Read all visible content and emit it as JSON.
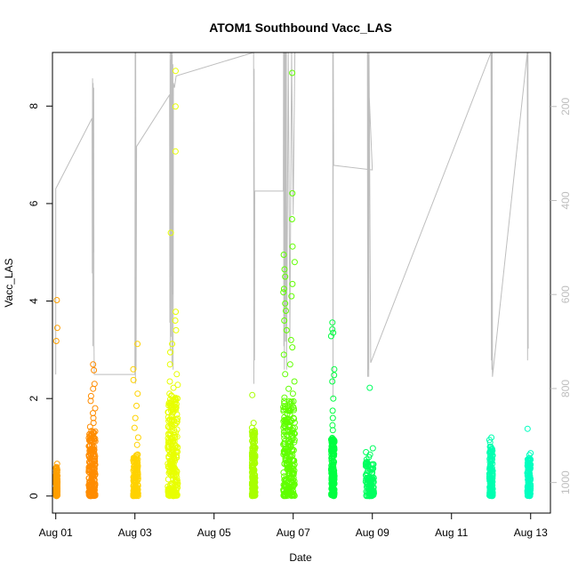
{
  "chart_data": {
    "type": "scatter",
    "title": "ATOM1 Southbound Vacc_LAS",
    "xlabel": "Date",
    "ylabel": "Vacc_LAS",
    "xlim": [
      "2016-07-31T22:00",
      "2016-08-13T12:00"
    ],
    "ylim": [
      -0.35,
      9.1
    ],
    "x_ticks": [
      {
        "label": "Aug 01",
        "date": "2016-08-01"
      },
      {
        "label": "Aug 03",
        "date": "2016-08-03"
      },
      {
        "label": "Aug 05",
        "date": "2016-08-05"
      },
      {
        "label": "Aug 07",
        "date": "2016-08-07"
      },
      {
        "label": "Aug 09",
        "date": "2016-08-09"
      },
      {
        "label": "Aug 11",
        "date": "2016-08-11"
      },
      {
        "label": "Aug 13",
        "date": "2016-08-13"
      }
    ],
    "y_ticks": [
      0,
      2,
      4,
      6,
      8
    ],
    "secondary_axis": {
      "color": "#bebebe",
      "ticks": [
        200,
        400,
        600,
        800,
        1000
      ],
      "range": [
        85,
        1065
      ],
      "reversed": true
    },
    "gray_line_series": [
      {
        "d": "2016-08-01T00:00",
        "v": 770
      },
      {
        "d": "2016-08-01T00:00",
        "v": 375
      },
      {
        "d": "2016-08-01T22:00",
        "v": 225
      },
      {
        "d": "2016-08-01T22:10",
        "v": 555
      },
      {
        "d": "2016-08-01T22:20",
        "v": 140
      },
      {
        "d": "2016-08-01T22:30",
        "v": 710
      },
      {
        "d": "2016-08-01T22:40",
        "v": 150
      },
      {
        "d": "2016-08-01T22:50",
        "v": 510
      },
      {
        "d": "2016-08-01T23:00",
        "v": 160
      },
      {
        "d": "2016-08-01T23:10",
        "v": 700
      },
      {
        "d": "2016-08-01T23:20",
        "v": 770
      },
      {
        "d": "2016-08-03T00:00",
        "v": 770
      },
      {
        "d": "2016-08-03T00:10",
        "v": 80
      },
      {
        "d": "2016-08-03T00:20",
        "v": 790
      },
      {
        "d": "2016-08-03T00:30",
        "v": 85
      },
      {
        "d": "2016-08-03T00:40",
        "v": 760
      },
      {
        "d": "2016-08-03T01:00",
        "v": 285
      },
      {
        "d": "2016-08-03T21:00",
        "v": 175
      },
      {
        "d": "2016-08-03T21:10",
        "v": 660
      },
      {
        "d": "2016-08-03T21:20",
        "v": 80
      },
      {
        "d": "2016-08-03T21:30",
        "v": 720
      },
      {
        "d": "2016-08-03T21:40",
        "v": 100
      },
      {
        "d": "2016-08-03T21:50",
        "v": 690
      },
      {
        "d": "2016-08-03T22:00",
        "v": 80
      },
      {
        "d": "2016-08-03T22:10",
        "v": 560
      },
      {
        "d": "2016-08-03T22:20",
        "v": 90
      },
      {
        "d": "2016-08-03T22:30",
        "v": 750
      },
      {
        "d": "2016-08-03T22:40",
        "v": 80
      },
      {
        "d": "2016-08-03T22:50",
        "v": 600
      },
      {
        "d": "2016-08-03T23:00",
        "v": 110
      },
      {
        "d": "2016-08-03T23:10",
        "v": 760
      },
      {
        "d": "2016-08-03T23:20",
        "v": 150
      },
      {
        "d": "2016-08-04T00:00",
        "v": 160
      },
      {
        "d": "2016-08-04T01:00",
        "v": 135
      },
      {
        "d": "2016-08-06T00:00",
        "v": 60
      },
      {
        "d": "2016-08-06T00:10",
        "v": 790
      },
      {
        "d": "2016-08-06T00:20",
        "v": 120
      },
      {
        "d": "2016-08-06T00:30",
        "v": 740
      },
      {
        "d": "2016-08-06T00:40",
        "v": 380
      },
      {
        "d": "2016-08-06T18:00",
        "v": 380
      },
      {
        "d": "2016-08-06T18:10",
        "v": 60
      },
      {
        "d": "2016-08-06T18:20",
        "v": 710
      },
      {
        "d": "2016-08-06T18:30",
        "v": 60
      },
      {
        "d": "2016-08-06T18:40",
        "v": 760
      },
      {
        "d": "2016-08-06T18:50",
        "v": 70
      },
      {
        "d": "2016-08-06T19:00",
        "v": 650
      },
      {
        "d": "2016-08-06T19:10",
        "v": 60
      },
      {
        "d": "2016-08-06T19:20",
        "v": 700
      },
      {
        "d": "2016-08-06T19:30",
        "v": 80
      },
      {
        "d": "2016-08-06T19:40",
        "v": 560
      },
      {
        "d": "2016-08-06T19:50",
        "v": 60
      },
      {
        "d": "2016-08-06T20:00",
        "v": 760
      },
      {
        "d": "2016-08-06T21:00",
        "v": 60
      },
      {
        "d": "2016-08-06T22:00",
        "v": 700
      },
      {
        "d": "2016-08-06T23:00",
        "v": 60
      },
      {
        "d": "2016-08-07T00:00",
        "v": 430
      },
      {
        "d": "2016-08-07T01:00",
        "v": 60
      },
      {
        "d": "2016-08-08T00:00",
        "v": 60
      },
      {
        "d": "2016-08-08T00:10",
        "v": 820
      },
      {
        "d": "2016-08-08T00:20",
        "v": 80
      },
      {
        "d": "2016-08-08T00:30",
        "v": 325
      },
      {
        "d": "2016-08-09T00:00",
        "v": 335
      },
      {
        "d": "2016-08-08T21:00",
        "v": 70
      },
      {
        "d": "2016-08-08T21:10",
        "v": 775
      },
      {
        "d": "2016-08-08T21:20",
        "v": 80
      },
      {
        "d": "2016-08-08T21:30",
        "v": 760
      },
      {
        "d": "2016-08-08T21:40",
        "v": 90
      },
      {
        "d": "2016-08-08T21:50",
        "v": 775
      },
      {
        "d": "2016-08-08T22:00",
        "v": 70
      },
      {
        "d": "2016-08-08T23:00",
        "v": 745
      },
      {
        "d": "2016-08-12T00:00",
        "v": 60
      },
      {
        "d": "2016-08-12T00:10",
        "v": 740
      },
      {
        "d": "2016-08-12T00:20",
        "v": 70
      },
      {
        "d": "2016-08-12T00:30",
        "v": 760
      },
      {
        "d": "2016-08-12T00:40",
        "v": 75
      },
      {
        "d": "2016-08-12T00:50",
        "v": 775
      },
      {
        "d": "2016-08-12T22:00",
        "v": 60
      },
      {
        "d": "2016-08-12T22:10",
        "v": 740
      },
      {
        "d": "2016-08-12T22:20",
        "v": 60
      },
      {
        "d": "2016-08-12T22:30",
        "v": 715
      }
    ],
    "clusters": [
      {
        "color": "#ff9f00",
        "time_start": "2016-08-01T00:00",
        "time_end": "2016-08-01T01:00",
        "core_min": 0.0,
        "core_max": 0.6,
        "outliers": [
          4.02,
          3.45,
          3.18,
          0.66,
          0.56,
          0.5
        ]
      },
      {
        "color": "#ff8c00",
        "time_start": "2016-08-01T20:00",
        "time_end": "2016-08-02T00:00",
        "core_min": 0.0,
        "core_max": 1.35,
        "outliers": [
          2.7,
          2.58,
          2.3,
          2.2,
          2.05,
          1.95,
          1.8,
          1.7,
          1.6,
          1.5,
          1.42
        ]
      },
      {
        "color": "#ffd200",
        "time_start": "2016-08-02T23:00",
        "time_end": "2016-08-03T02:00",
        "core_min": 0.0,
        "core_max": 0.9,
        "outliers": [
          3.12,
          2.6,
          2.38,
          2.1,
          1.85,
          1.6,
          1.4,
          1.2,
          1.05
        ]
      },
      {
        "color": "#e8ff00",
        "time_start": "2016-08-03T20:00",
        "time_end": "2016-08-04T02:00",
        "core_min": 0.0,
        "core_max": 2.1,
        "outliers": [
          8.72,
          7.99,
          7.07,
          5.4,
          3.78,
          3.6,
          3.4,
          3.12,
          2.95,
          2.7,
          2.5,
          2.35,
          2.28,
          2.22
        ]
      },
      {
        "color": "#a8ff00",
        "time_start": "2016-08-05T23:00",
        "time_end": "2016-08-06T01:00",
        "core_min": 0.0,
        "core_max": 1.35,
        "outliers": [
          2.07,
          1.5,
          1.4
        ]
      },
      {
        "color": "#60ff00",
        "time_start": "2016-08-06T18:00",
        "time_end": "2016-08-07T01:00",
        "core_min": 0.0,
        "core_max": 1.95,
        "outliers": [
          8.68,
          6.21,
          5.68,
          5.12,
          4.95,
          4.8,
          4.65,
          4.5,
          4.35,
          4.25,
          4.18,
          4.1,
          3.95,
          3.8,
          3.6,
          3.4,
          3.2,
          3.05,
          2.9,
          2.7,
          2.5,
          2.35,
          2.2,
          2.1,
          2.02
        ]
      },
      {
        "color": "#00ff40",
        "time_start": "2016-08-07T23:00",
        "time_end": "2016-08-08T01:00",
        "core_min": 0.0,
        "core_max": 1.2,
        "outliers": [
          3.56,
          3.42,
          3.35,
          3.28,
          2.6,
          2.48,
          2.35,
          2.0,
          1.75,
          1.6,
          1.45,
          1.35
        ]
      },
      {
        "color": "#00ff60",
        "time_start": "2016-08-08T20:00",
        "time_end": "2016-08-09T01:00",
        "core_min": 0.0,
        "core_max": 0.7,
        "outliers": [
          2.22,
          0.98,
          0.9,
          0.85,
          0.8,
          0.75
        ]
      },
      {
        "color": "#00ffb0",
        "time_start": "2016-08-11T23:00",
        "time_end": "2016-08-12T01:00",
        "core_min": 0.0,
        "core_max": 1.05,
        "outliers": [
          1.2,
          1.15,
          1.1
        ]
      },
      {
        "color": "#00ffc0",
        "time_start": "2016-08-12T22:00",
        "time_end": "2016-08-13T00:00",
        "core_min": 0.0,
        "core_max": 0.78,
        "outliers": [
          1.38,
          0.88,
          0.84
        ]
      }
    ]
  }
}
